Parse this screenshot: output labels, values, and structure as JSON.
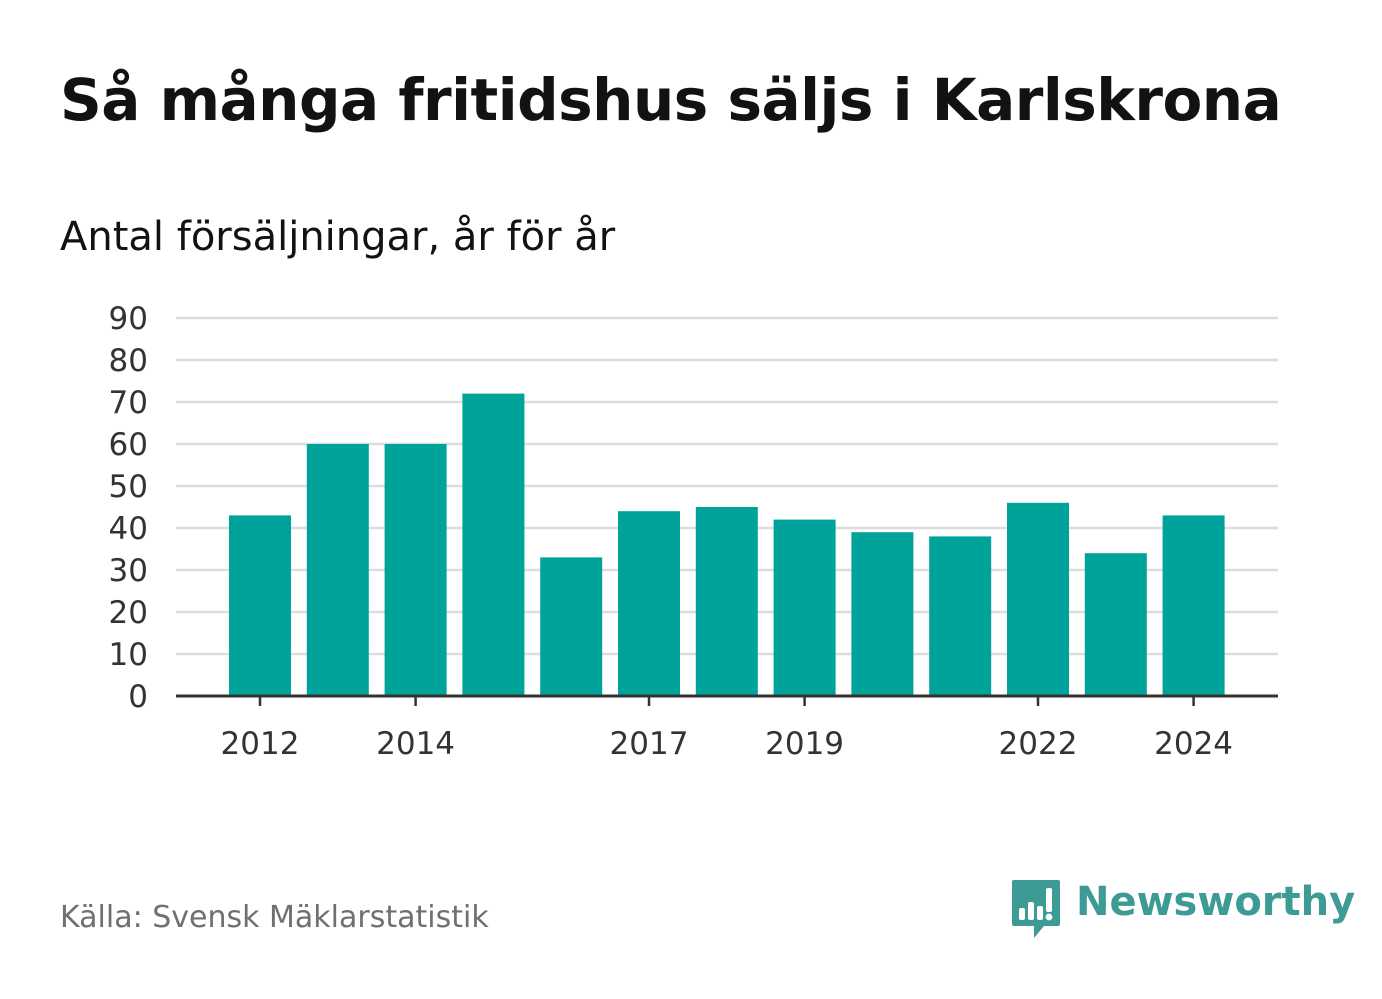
{
  "title": "Så många fritidshus säljs i Karlskrona",
  "subtitle": "Antal försäljningar, år för år",
  "source": "Källa: Svensk Mäklarstatistik",
  "brand": {
    "name": "Newsworthy",
    "icon": "bar-chart-bubble-icon",
    "color": "#3e9a94"
  },
  "chart_data": {
    "type": "bar",
    "categories": [
      "2012",
      "2013",
      "2014",
      "2015",
      "2016",
      "2017",
      "2018",
      "2019",
      "2020",
      "2021",
      "2022",
      "2023",
      "2024"
    ],
    "values": [
      43,
      60,
      60,
      72,
      33,
      44,
      45,
      42,
      39,
      38,
      46,
      34,
      43
    ],
    "x_tick_labels": [
      "2012",
      "2014",
      "2017",
      "2019",
      "2022",
      "2024"
    ],
    "y_ticks": [
      0,
      10,
      20,
      30,
      40,
      50,
      60,
      70,
      80,
      90
    ],
    "ylim": [
      0,
      90
    ],
    "grid": true,
    "legend": false,
    "bar_color": "#00a39a",
    "grid_color": "#dddddd",
    "axis_color": "#333333"
  }
}
